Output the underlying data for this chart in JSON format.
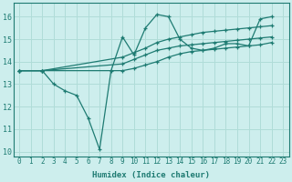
{
  "xlabel": "Humidex (Indice chaleur)",
  "xlim": [
    -0.5,
    23.5
  ],
  "ylim": [
    9.8,
    16.6
  ],
  "yticks": [
    10,
    11,
    12,
    13,
    14,
    15,
    16
  ],
  "xticks": [
    0,
    1,
    2,
    3,
    4,
    5,
    6,
    7,
    8,
    9,
    10,
    11,
    12,
    13,
    14,
    15,
    16,
    17,
    18,
    19,
    20,
    21,
    22,
    23
  ],
  "bg_color": "#cdeeed",
  "grid_color": "#b0dcd8",
  "line_color": "#1e7b72",
  "series": [
    {
      "x": [
        0,
        2,
        3,
        4,
        5,
        6,
        7,
        8,
        9,
        10,
        11,
        12,
        13,
        14,
        15,
        16,
        17,
        18,
        19,
        20,
        21,
        22
      ],
      "y": [
        13.6,
        13.6,
        13.0,
        12.7,
        12.5,
        11.5,
        10.1,
        13.6,
        15.1,
        14.3,
        15.5,
        16.1,
        16.0,
        15.0,
        14.6,
        14.5,
        14.6,
        14.8,
        14.8,
        14.7,
        15.9,
        16.0
      ]
    },
    {
      "x": [
        0,
        2,
        9,
        10,
        11,
        12,
        13,
        14,
        15,
        16,
        17,
        18,
        19,
        20,
        21,
        22
      ],
      "y": [
        13.6,
        13.6,
        14.2,
        14.4,
        14.6,
        14.85,
        15.0,
        15.1,
        15.2,
        15.3,
        15.35,
        15.4,
        15.45,
        15.5,
        15.55,
        15.6
      ]
    },
    {
      "x": [
        0,
        2,
        9,
        10,
        11,
        12,
        13,
        14,
        15,
        16,
        17,
        18,
        19,
        20,
        21,
        22
      ],
      "y": [
        13.6,
        13.6,
        13.9,
        14.1,
        14.3,
        14.5,
        14.6,
        14.7,
        14.75,
        14.8,
        14.85,
        14.9,
        14.95,
        15.0,
        15.05,
        15.1
      ]
    },
    {
      "x": [
        0,
        2,
        9,
        10,
        11,
        12,
        13,
        14,
        15,
        16,
        17,
        18,
        19,
        20,
        21,
        22
      ],
      "y": [
        13.6,
        13.6,
        13.6,
        13.7,
        13.85,
        14.0,
        14.2,
        14.35,
        14.45,
        14.5,
        14.55,
        14.6,
        14.65,
        14.7,
        14.75,
        14.85
      ]
    }
  ]
}
